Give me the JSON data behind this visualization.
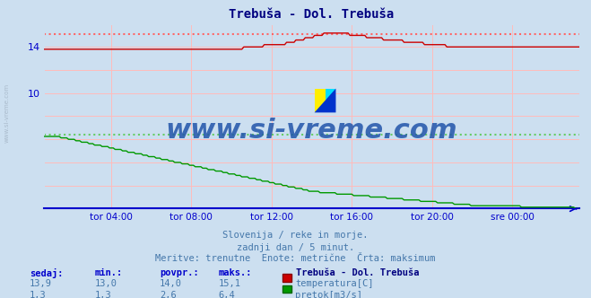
{
  "title": "Trebuša - Dol. Trebuša",
  "title_color": "#000080",
  "bg_color": "#ccdff0",
  "plot_bg_color": "#ccdff0",
  "grid_color_h": "#ffbbbb",
  "grid_color_v": "#ddbbbb",
  "axis_color": "#0000cc",
  "x_labels": [
    "tor 04:00",
    "tor 08:00",
    "tor 12:00",
    "tor 16:00",
    "tor 20:00",
    "sre 00:00"
  ],
  "y_label_values": [
    10,
    14
  ],
  "y_min": 0,
  "y_max": 16,
  "temp_color": "#cc0000",
  "flow_color": "#009900",
  "temp_max_line": 15.1,
  "flow_max_line": 6.4,
  "temp_max_line_color": "#ff6666",
  "flow_max_line_color": "#66cc66",
  "watermark": "www.si-vreme.com",
  "watermark_color": "#2255aa",
  "watermark_alpha": 0.85,
  "subtitle1": "Slovenija / reke in morje.",
  "subtitle2": "zadnji dan / 5 minut.",
  "subtitle3": "Meritve: trenutne  Enote: metrične  Črta: maksimum",
  "subtitle_color": "#4477aa",
  "legend_title": "Trebuša - Dol. Trebuša",
  "legend_title_color": "#000080",
  "legend_color": "#4477aa",
  "table_headers": [
    "sedaj:",
    "min.:",
    "povpr.:",
    "maks.:"
  ],
  "table_header_color": "#0000cc",
  "table_rows": [
    [
      "13,9",
      "13,0",
      "14,0",
      "15,1"
    ],
    [
      "1,3",
      "1,3",
      "2,6",
      "6,4"
    ]
  ],
  "n_points": 288,
  "left_label": "www.si-vreme.com",
  "left_label_color": "#aabbcc"
}
